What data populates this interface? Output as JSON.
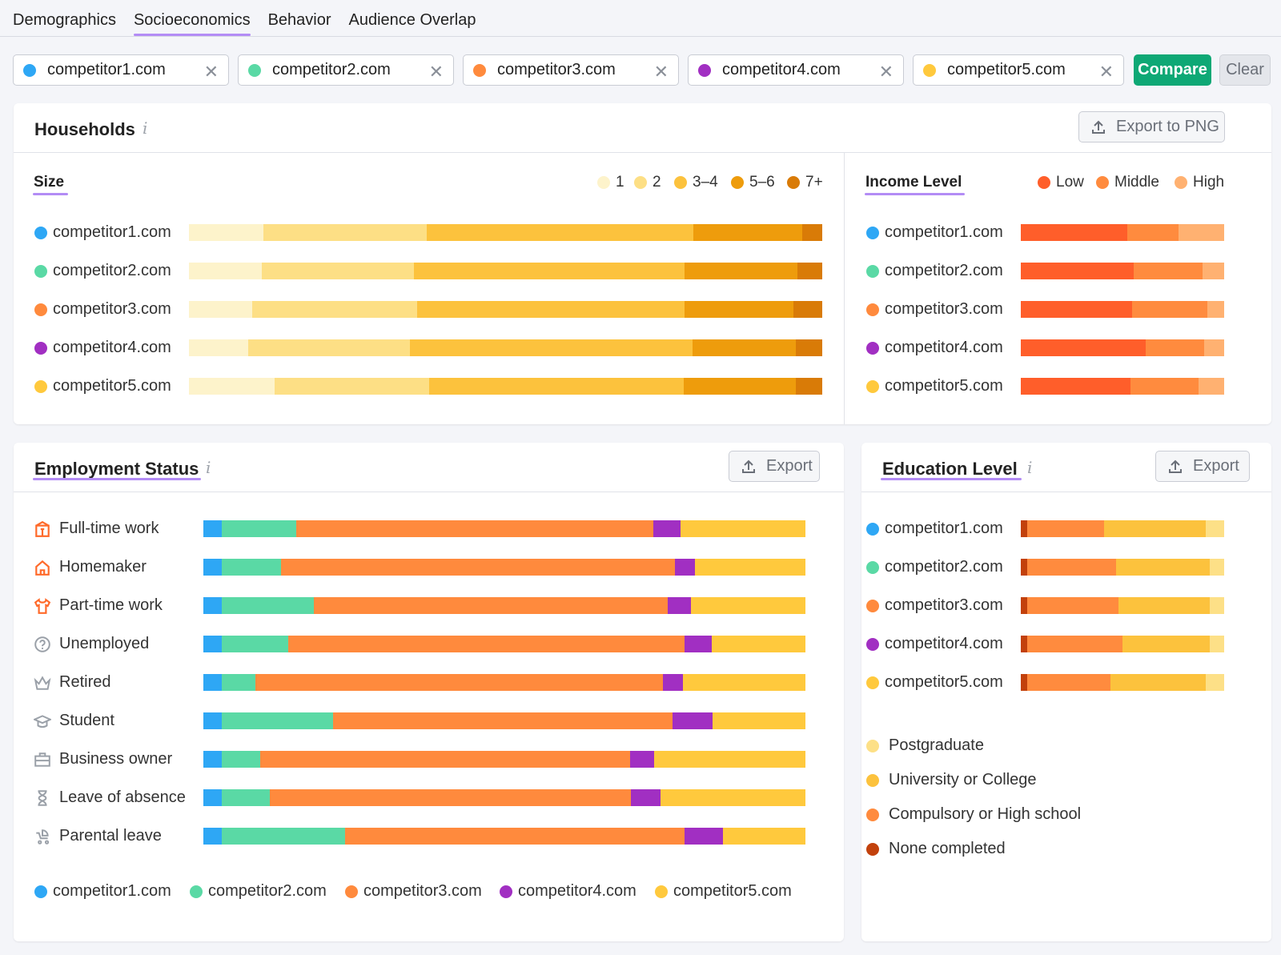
{
  "tabs": [
    "Demographics",
    "Socioeconomics",
    "Behavior",
    "Audience Overlap"
  ],
  "active_tab": "Socioeconomics",
  "competitors": [
    {
      "name": "competitor1.com",
      "color": "#2ea7f5"
    },
    {
      "name": "competitor2.com",
      "color": "#5ad9a5"
    },
    {
      "name": "competitor3.com",
      "color": "#ff8a3d"
    },
    {
      "name": "competitor4.com",
      "color": "#a12fc2"
    },
    {
      "name": "competitor5.com",
      "color": "#ffc93d"
    }
  ],
  "buttons": {
    "compare": "Compare",
    "clear": "Clear",
    "export_png": "Export to PNG",
    "export": "Export"
  },
  "households": {
    "title": "Households",
    "size": {
      "title": "Size",
      "legend": [
        {
          "label": "1",
          "color": "#fdf3cb"
        },
        {
          "label": "2",
          "color": "#fddf85"
        },
        {
          "label": "3–4",
          "color": "#fcc23d"
        },
        {
          "label": "5–6",
          "color": "#ee9c0c"
        },
        {
          "label": "7+",
          "color": "#d97b07"
        }
      ],
      "rows": [
        {
          "site": "competitor1.com",
          "values": [
            0.117,
            0.259,
            0.42,
            0.173,
            0.031
          ]
        },
        {
          "site": "competitor2.com",
          "values": [
            0.115,
            0.24,
            0.428,
            0.178,
            0.039
          ]
        },
        {
          "site": "competitor3.com",
          "values": [
            0.1,
            0.26,
            0.422,
            0.173,
            0.045
          ]
        },
        {
          "site": "competitor4.com",
          "values": [
            0.093,
            0.256,
            0.446,
            0.163,
            0.042
          ]
        },
        {
          "site": "competitor5.com",
          "values": [
            0.135,
            0.244,
            0.402,
            0.177,
            0.042
          ]
        }
      ]
    },
    "income": {
      "title": "Income Level",
      "legend": [
        {
          "label": "Low",
          "color": "#ff5e2a"
        },
        {
          "label": "Middle",
          "color": "#ff8b3e"
        },
        {
          "label": "High",
          "color": "#ffb171"
        }
      ],
      "rows": [
        {
          "site": "competitor1.com",
          "values": [
            0.523,
            0.252,
            0.225
          ]
        },
        {
          "site": "competitor2.com",
          "values": [
            0.557,
            0.337,
            0.106
          ]
        },
        {
          "site": "competitor3.com",
          "values": [
            0.546,
            0.37,
            0.084
          ]
        },
        {
          "site": "competitor4.com",
          "values": [
            0.615,
            0.288,
            0.097
          ]
        },
        {
          "site": "competitor5.com",
          "values": [
            0.539,
            0.334,
            0.127
          ]
        }
      ]
    }
  },
  "employment": {
    "title": "Employment Status",
    "rows": [
      {
        "label": "Full-time work",
        "icon": "building-icon",
        "values": [
          0.03,
          0.124,
          0.59,
          0.045,
          0.206
        ]
      },
      {
        "label": "Homemaker",
        "icon": "house-icon",
        "values": [
          0.03,
          0.099,
          0.65,
          0.034,
          0.182
        ]
      },
      {
        "label": "Part-time work",
        "icon": "shirt-icon",
        "values": [
          0.03,
          0.153,
          0.584,
          0.039,
          0.189
        ]
      },
      {
        "label": "Unemployed",
        "icon": "question-circle-icon",
        "values": [
          0.03,
          0.11,
          0.655,
          0.045,
          0.155
        ]
      },
      {
        "label": "Retired",
        "icon": "crown-icon",
        "values": [
          0.03,
          0.056,
          0.674,
          0.032,
          0.203
        ]
      },
      {
        "label": "Student",
        "icon": "graduation-cap-icon",
        "values": [
          0.03,
          0.184,
          0.561,
          0.067,
          0.153
        ]
      },
      {
        "label": "Business owner",
        "icon": "briefcase-icon",
        "values": [
          0.03,
          0.064,
          0.612,
          0.04,
          0.25
        ]
      },
      {
        "label": "Leave of absence",
        "icon": "hourglass-icon",
        "values": [
          0.03,
          0.08,
          0.597,
          0.048,
          0.24
        ]
      },
      {
        "label": "Parental leave",
        "icon": "stroller-icon",
        "values": [
          0.03,
          0.204,
          0.562,
          0.064,
          0.136
        ]
      }
    ]
  },
  "education": {
    "title": "Education Level",
    "legend": [
      {
        "label": "Postgraduate",
        "color": "#fde087"
      },
      {
        "label": "University or College",
        "color": "#fcc23d"
      },
      {
        "label": "Compulsory or High school",
        "color": "#ff8b3e"
      },
      {
        "label": "None completed",
        "color": "#c2410c"
      }
    ],
    "rows": [
      {
        "site": "competitor1.com",
        "values_none_comp_uni_post": [
          0.03,
          0.38,
          0.5,
          0.09
        ]
      },
      {
        "site": "competitor2.com",
        "values_none_comp_uni_post": [
          0.03,
          0.44,
          0.46,
          0.07
        ]
      },
      {
        "site": "competitor3.com",
        "values_none_comp_uni_post": [
          0.03,
          0.45,
          0.45,
          0.07
        ]
      },
      {
        "site": "competitor4.com",
        "values_none_comp_uni_post": [
          0.03,
          0.47,
          0.43,
          0.07
        ]
      },
      {
        "site": "competitor5.com",
        "values_none_comp_uni_post": [
          0.03,
          0.41,
          0.47,
          0.09
        ]
      }
    ]
  }
}
